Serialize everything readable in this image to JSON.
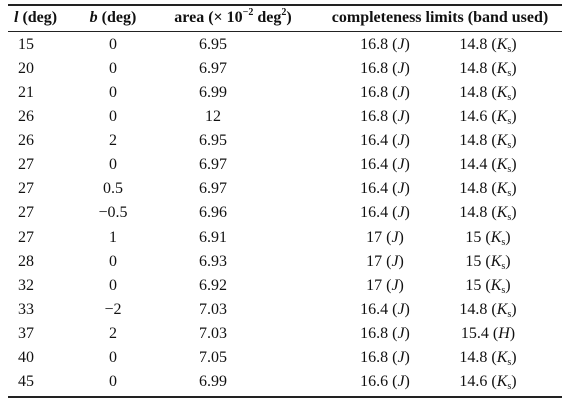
{
  "table": {
    "header": [
      [
        {
          "text": "l",
          "style": "i"
        },
        {
          "text": " (deg)"
        }
      ],
      [
        {
          "text": "b",
          "style": "i"
        },
        {
          "text": " (deg)"
        }
      ],
      [
        {
          "text": "area (× 10"
        },
        {
          "text": "−2",
          "style": "sup"
        },
        {
          "text": " deg"
        },
        {
          "text": "2",
          "style": "sup"
        },
        {
          "text": ")"
        }
      ],
      [
        {
          "text": "completeness limits (band used)"
        }
      ]
    ],
    "rows": [
      [
        "15",
        "0",
        "6.95",
        [
          {
            "text": "16.8 ("
          },
          {
            "text": "J",
            "style": "i"
          },
          {
            "text": ")"
          }
        ],
        [
          {
            "text": "14.8 ("
          },
          {
            "text": "K",
            "style": "i"
          },
          {
            "text": "s",
            "style": "sub"
          },
          {
            "text": ")"
          }
        ]
      ],
      [
        "20",
        "0",
        "6.97",
        [
          {
            "text": "16.8 ("
          },
          {
            "text": "J",
            "style": "i"
          },
          {
            "text": ")"
          }
        ],
        [
          {
            "text": "14.8 ("
          },
          {
            "text": "K",
            "style": "i"
          },
          {
            "text": "s",
            "style": "sub"
          },
          {
            "text": ")"
          }
        ]
      ],
      [
        "21",
        "0",
        "6.99",
        [
          {
            "text": "16.8 ("
          },
          {
            "text": "J",
            "style": "i"
          },
          {
            "text": ")"
          }
        ],
        [
          {
            "text": "14.8 ("
          },
          {
            "text": "K",
            "style": "i"
          },
          {
            "text": "s",
            "style": "sub"
          },
          {
            "text": ")"
          }
        ]
      ],
      [
        "26",
        "0",
        "12",
        [
          {
            "text": "16.8 ("
          },
          {
            "text": "J",
            "style": "i"
          },
          {
            "text": ")"
          }
        ],
        [
          {
            "text": "14.6 ("
          },
          {
            "text": "K",
            "style": "i"
          },
          {
            "text": "s",
            "style": "sub"
          },
          {
            "text": ")"
          }
        ]
      ],
      [
        "26",
        "2",
        "6.95",
        [
          {
            "text": "16.4 ("
          },
          {
            "text": "J",
            "style": "i"
          },
          {
            "text": ")"
          }
        ],
        [
          {
            "text": "14.8 ("
          },
          {
            "text": "K",
            "style": "i"
          },
          {
            "text": "s",
            "style": "sub"
          },
          {
            "text": ")"
          }
        ]
      ],
      [
        "27",
        "0",
        "6.97",
        [
          {
            "text": "16.4 ("
          },
          {
            "text": "J",
            "style": "i"
          },
          {
            "text": ")"
          }
        ],
        [
          {
            "text": "14.4 ("
          },
          {
            "text": "K",
            "style": "i"
          },
          {
            "text": "s",
            "style": "sub"
          },
          {
            "text": ")"
          }
        ]
      ],
      [
        "27",
        "0.5",
        "6.97",
        [
          {
            "text": "16.4 ("
          },
          {
            "text": "J",
            "style": "i"
          },
          {
            "text": ")"
          }
        ],
        [
          {
            "text": "14.8 ("
          },
          {
            "text": "K",
            "style": "i"
          },
          {
            "text": "s",
            "style": "sub"
          },
          {
            "text": ")"
          }
        ]
      ],
      [
        "27",
        "−0.5",
        "6.96",
        [
          {
            "text": "16.4 ("
          },
          {
            "text": "J",
            "style": "i"
          },
          {
            "text": ")"
          }
        ],
        [
          {
            "text": "14.8 ("
          },
          {
            "text": "K",
            "style": "i"
          },
          {
            "text": "s",
            "style": "sub"
          },
          {
            "text": ")"
          }
        ]
      ],
      [
        "27",
        "1",
        "6.91",
        [
          {
            "text": "17 ("
          },
          {
            "text": "J",
            "style": "i"
          },
          {
            "text": ")"
          }
        ],
        [
          {
            "text": "15 ("
          },
          {
            "text": "K",
            "style": "i"
          },
          {
            "text": "s",
            "style": "sub"
          },
          {
            "text": ")"
          }
        ]
      ],
      [
        "28",
        "0",
        "6.93",
        [
          {
            "text": "17 ("
          },
          {
            "text": "J",
            "style": "i"
          },
          {
            "text": ")"
          }
        ],
        [
          {
            "text": "15 ("
          },
          {
            "text": "K",
            "style": "i"
          },
          {
            "text": "s",
            "style": "sub"
          },
          {
            "text": ")"
          }
        ]
      ],
      [
        "32",
        "0",
        "6.92",
        [
          {
            "text": "17 ("
          },
          {
            "text": "J",
            "style": "i"
          },
          {
            "text": ")"
          }
        ],
        [
          {
            "text": "15 ("
          },
          {
            "text": "K",
            "style": "i"
          },
          {
            "text": "s",
            "style": "sub"
          },
          {
            "text": ")"
          }
        ]
      ],
      [
        "33",
        "−2",
        "7.03",
        [
          {
            "text": "16.4 ("
          },
          {
            "text": "J",
            "style": "i"
          },
          {
            "text": ")"
          }
        ],
        [
          {
            "text": "14.8 ("
          },
          {
            "text": "K",
            "style": "i"
          },
          {
            "text": "s",
            "style": "sub"
          },
          {
            "text": ")"
          }
        ]
      ],
      [
        "37",
        "2",
        "7.03",
        [
          {
            "text": "16.8 ("
          },
          {
            "text": "J",
            "style": "i"
          },
          {
            "text": ")"
          }
        ],
        [
          {
            "text": "15.4 ("
          },
          {
            "text": "H",
            "style": "i"
          },
          {
            "text": ")"
          }
        ]
      ],
      [
        "40",
        "0",
        "7.05",
        [
          {
            "text": "16.8 ("
          },
          {
            "text": "J",
            "style": "i"
          },
          {
            "text": ")"
          }
        ],
        [
          {
            "text": "14.8 ("
          },
          {
            "text": "K",
            "style": "i"
          },
          {
            "text": "s",
            "style": "sub"
          },
          {
            "text": ")"
          }
        ]
      ],
      [
        "45",
        "0",
        "6.99",
        [
          {
            "text": "16.6 ("
          },
          {
            "text": "J",
            "style": "i"
          },
          {
            "text": ")"
          }
        ],
        [
          {
            "text": "14.6 ("
          },
          {
            "text": "K",
            "style": "i"
          },
          {
            "text": "s",
            "style": "sub"
          },
          {
            "text": ")"
          }
        ]
      ]
    ]
  }
}
